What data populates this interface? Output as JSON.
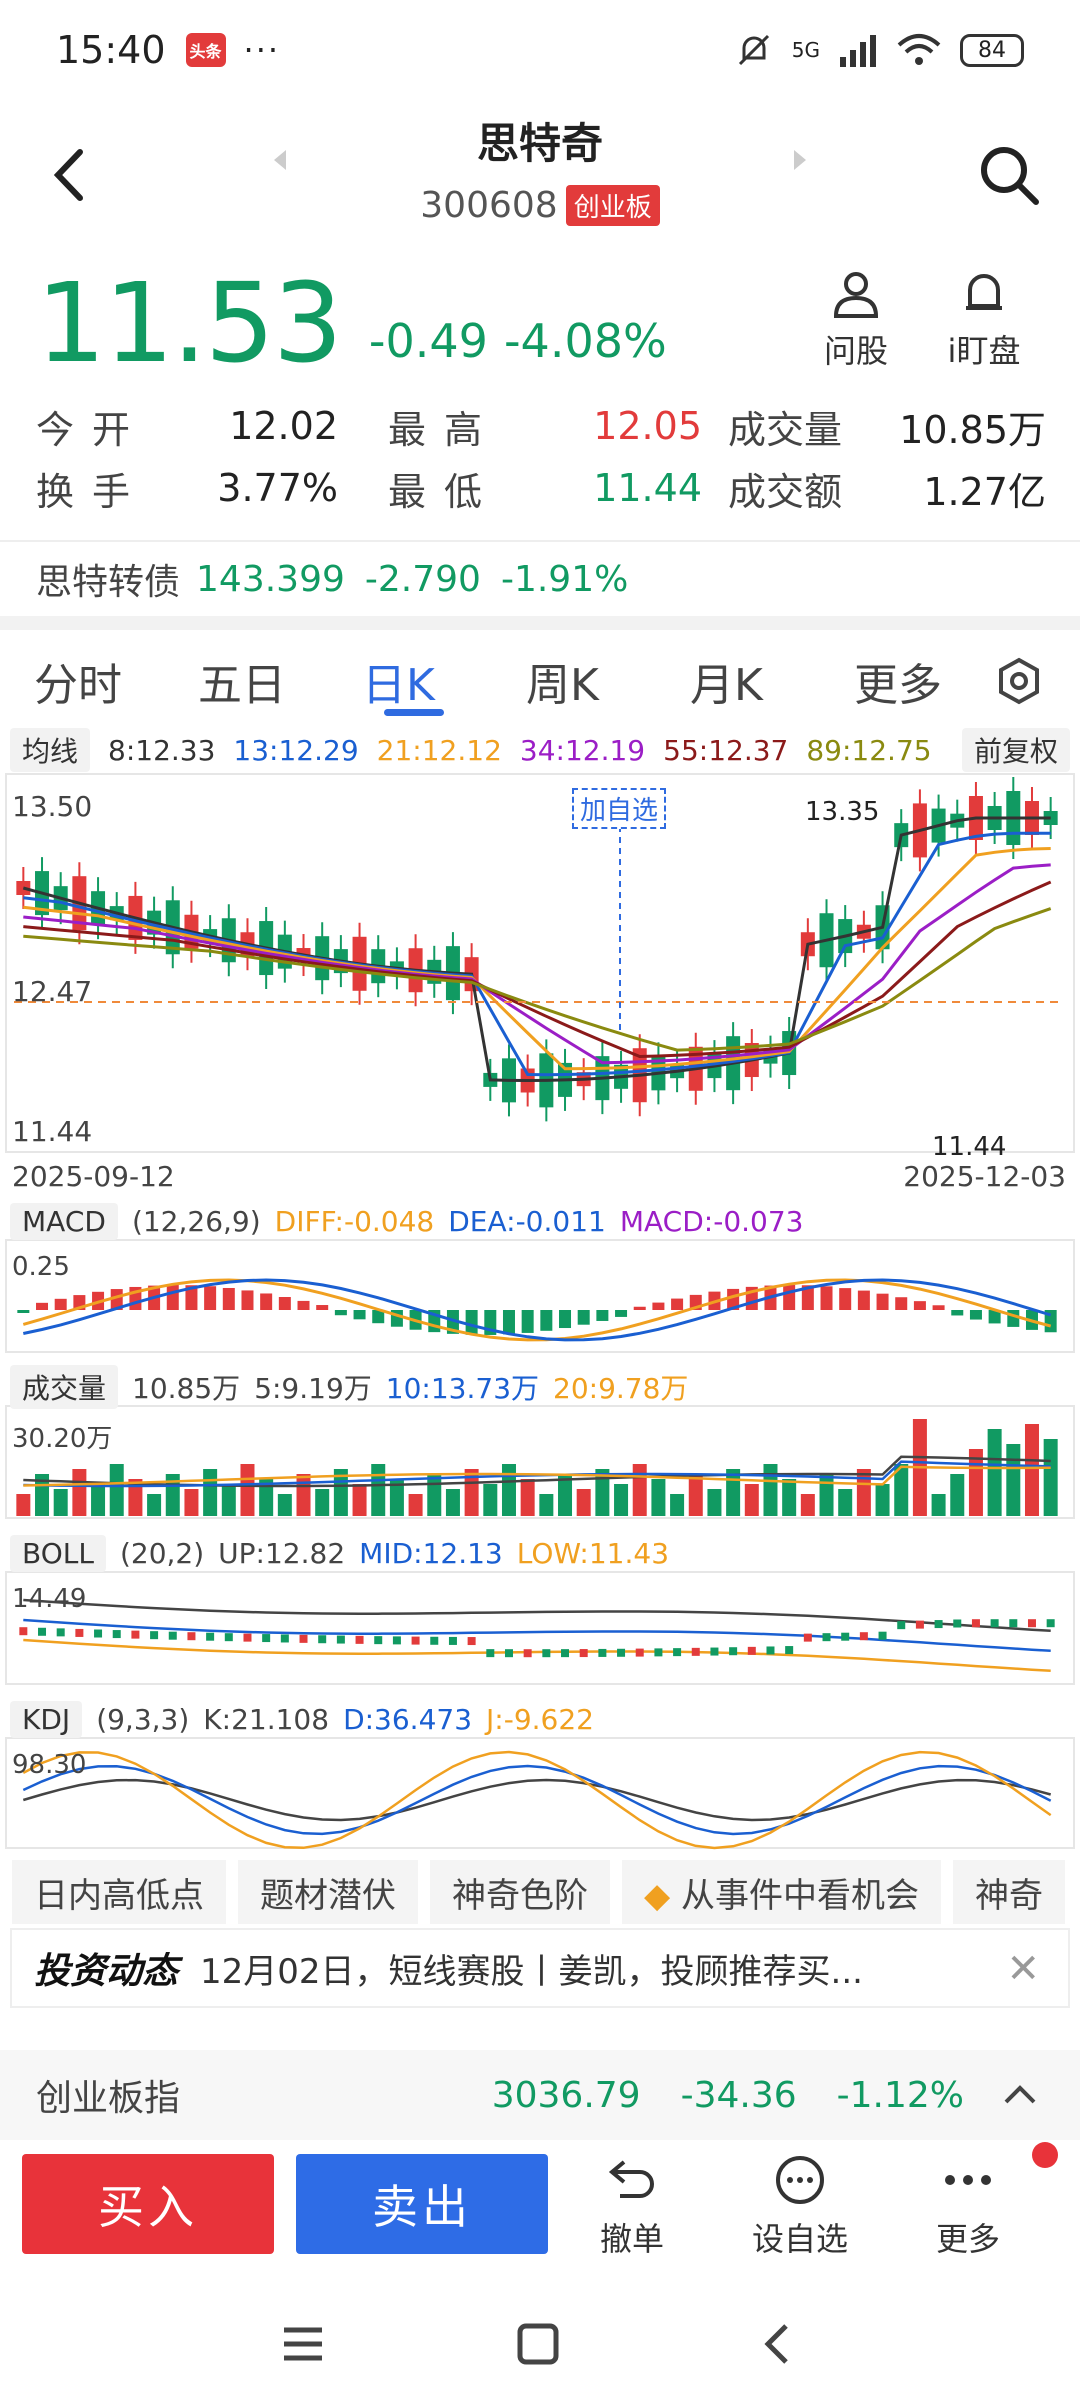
{
  "status_bar": {
    "time": "15:40",
    "app_badge": "头条",
    "dots": "···",
    "network": "5G",
    "battery": "84"
  },
  "header": {
    "name": "思特奇",
    "code": "300608",
    "board": "创业板"
  },
  "quote": {
    "price": "11.53",
    "change": "-0.49",
    "change_pct": "-4.08%",
    "ask_label": "问股",
    "watch_label": "i盯盘"
  },
  "stats": {
    "open_label": "今开",
    "open": "12.02",
    "high_label": "最高",
    "high": "12.05",
    "volume_label": "成交量",
    "volume": "10.85万",
    "turnover_label": "换手",
    "turnover": "3.77%",
    "low_label": "最低",
    "low": "11.44",
    "amount_label": "成交额",
    "amount": "1.27亿"
  },
  "bond": {
    "name": "思特转债",
    "price": "143.399",
    "change": "-2.790",
    "pct": "-1.91%"
  },
  "kline_tabs": [
    "分时",
    "五日",
    "日K",
    "周K",
    "月K",
    "更多"
  ],
  "ma": {
    "label": "均线",
    "ma8": "8:12.33",
    "ma13": "13:12.29",
    "ma21": "21:12.12",
    "ma34": "34:12.19",
    "ma55": "55:12.37",
    "ma89": "89:12.75",
    "adjust": "前复权"
  },
  "colors": {
    "ma8": "#333333",
    "ma13": "#1a5fd1",
    "ma21": "#f0a020",
    "ma34": "#9b1ec6",
    "ma55": "#8b1a1a",
    "ma89": "#8a8a10",
    "up": "#e23b3b",
    "down": "#119a62"
  },
  "main_chart": {
    "y_top": "13.50",
    "y_mid": "12.47",
    "y_bottom": "11.44",
    "high_mark": "13.35",
    "low_mark": "11.44",
    "date_start": "2025-09-12",
    "date_end": "2025-12-03",
    "add_watch": "加自选"
  },
  "macd": {
    "label": "MACD",
    "params": "(12,26,9)",
    "diff": "DIFF:-0.048",
    "dea": "DEA:-0.011",
    "macd": "MACD:-0.073",
    "top": "0.25"
  },
  "vol": {
    "label": "成交量",
    "v": "10.85万",
    "v5": "5:9.19万",
    "v10": "10:13.73万",
    "v20": "20:9.78万",
    "top": "30.20万"
  },
  "boll": {
    "label": "BOLL",
    "params": "(20,2)",
    "up": "UP:12.82",
    "mid": "MID:12.13",
    "low": "LOW:11.43",
    "top": "14.49"
  },
  "kdj": {
    "label": "KDJ",
    "params": "(9,3,3)",
    "k": "K:21.108",
    "d": "D:36.473",
    "j": "J:-9.622",
    "top": "98.30"
  },
  "features": [
    "日内高低点",
    "题材潜伏",
    "神奇色阶",
    "从事件中看机会",
    "神奇"
  ],
  "news": {
    "logo": "投资动态",
    "text": "12月02日，短线赛股丨姜凯，投顾推荐买..."
  },
  "index_bar": {
    "name": "创业板指",
    "value": "3036.79",
    "change": "-34.36",
    "pct": "-1.12%"
  },
  "actions": {
    "buy": "买入",
    "sell": "卖出",
    "cancel": "撤单",
    "watch": "设自选",
    "more": "更多"
  },
  "icons": [
    "back-icon",
    "search-icon",
    "user-icon",
    "bell-icon",
    "gear-icon",
    "undo-icon",
    "chat-icon",
    "more-icon",
    "close-icon",
    "caret-up-icon",
    "menu-icon",
    "home-icon",
    "nav-back-icon"
  ]
}
